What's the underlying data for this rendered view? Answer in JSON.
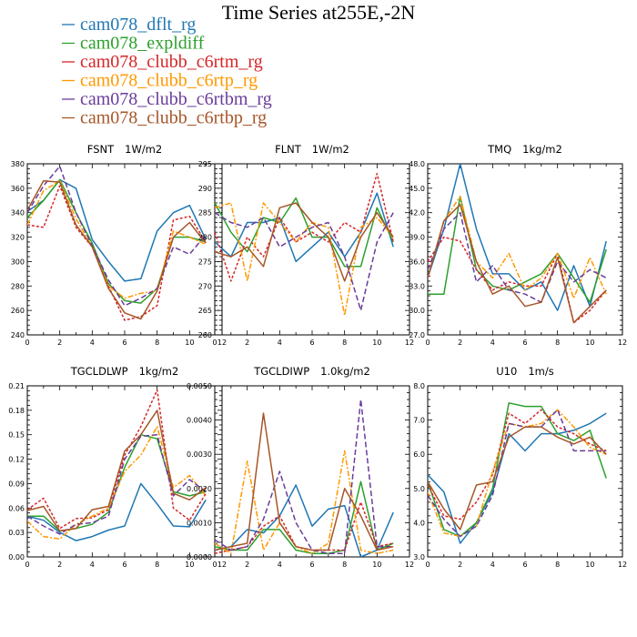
{
  "figure_title": "Time Series at255E,-2N",
  "legend": [
    {
      "name": "cam078_dflt_rg",
      "color": "#1f77b4"
    },
    {
      "name": "cam078_expldiff",
      "color": "#2ca02c"
    },
    {
      "name": "cam078_clubb_c6rtm_rg",
      "color": "#d62728"
    },
    {
      "name": "cam078_clubb_c6rtp_rg",
      "color": "#ff9900"
    },
    {
      "name": "cam078_clubb_c6rtbm_rg",
      "color": "#6a3d9a"
    },
    {
      "name": "cam078_clubb_c6rtbp_rg",
      "color": "#a65628"
    }
  ],
  "chart_data": [
    {
      "type": "line",
      "title": "FSNT",
      "unit": "1W/m2",
      "x": [
        0,
        1,
        2,
        3,
        4,
        5,
        6,
        7,
        8,
        9,
        10,
        11
      ],
      "xlim": [
        0,
        12
      ],
      "xticks": [
        0,
        2,
        4,
        6,
        8,
        10,
        12
      ],
      "ylim": [
        240,
        380
      ],
      "yticks": [
        240,
        260,
        280,
        300,
        320,
        340,
        360,
        380
      ],
      "ytick_labels": [
        "240",
        "260",
        "280",
        "300",
        "320",
        "340",
        "360",
        "380"
      ],
      "series": [
        {
          "name": "cam078_dflt_rg",
          "dash": "solid",
          "values": [
            341,
            350,
            367,
            360,
            318,
            300,
            284,
            286,
            325,
            340,
            346,
            318
          ]
        },
        {
          "name": "cam078_expldiff",
          "dash": "solid",
          "values": [
            336,
            350,
            367,
            340,
            315,
            282,
            268,
            266,
            278,
            320,
            320,
            316
          ]
        },
        {
          "name": "cam078_clubb_c6rtm_rg",
          "dash": "short",
          "values": [
            330,
            328,
            362,
            328,
            312,
            280,
            252,
            255,
            264,
            334,
            337,
            316
          ]
        },
        {
          "name": "cam078_clubb_c6rtp_rg",
          "dash": "dashdot",
          "values": [
            330,
            358,
            366,
            335,
            312,
            280,
            270,
            274,
            276,
            325,
            320,
            314
          ]
        },
        {
          "name": "cam078_clubb_c6rtbm_rg",
          "dash": "long",
          "values": [
            340,
            362,
            378,
            340,
            313,
            285,
            264,
            270,
            278,
            312,
            306,
            322
          ]
        },
        {
          "name": "cam078_clubb_c6rtbp_rg",
          "dash": "solid",
          "values": [
            342,
            366,
            365,
            330,
            312,
            278,
            258,
            253,
            276,
            320,
            332,
            315
          ]
        }
      ]
    },
    {
      "type": "line",
      "title": "FLNT",
      "unit": "1W/m2",
      "x": [
        0,
        1,
        2,
        3,
        4,
        5,
        6,
        7,
        8,
        9,
        10,
        11
      ],
      "xlim": [
        0,
        12
      ],
      "xticks": [
        0,
        2,
        4,
        6,
        8,
        10,
        12
      ],
      "ylim": [
        260,
        295
      ],
      "yticks": [
        260,
        265,
        270,
        275,
        280,
        285,
        290,
        295
      ],
      "ytick_labels": [
        "260",
        "265",
        "270",
        "275",
        "280",
        "285",
        "290",
        "295"
      ],
      "series": [
        {
          "name": "cam078_dflt_rg",
          "dash": "solid",
          "values": [
            279,
            276,
            283,
            283,
            284,
            275,
            278,
            281,
            276,
            281,
            289,
            278
          ]
        },
        {
          "name": "cam078_expldiff",
          "dash": "solid",
          "values": [
            287,
            281,
            277,
            284,
            283,
            288,
            280,
            280,
            274,
            274,
            286,
            279
          ]
        },
        {
          "name": "cam078_clubb_c6rtm_rg",
          "dash": "short",
          "values": [
            281,
            271,
            280,
            276,
            284,
            279,
            281,
            279,
            283,
            281,
            293,
            279
          ]
        },
        {
          "name": "cam078_clubb_c6rtp_rg",
          "dash": "dashdot",
          "values": [
            286,
            287,
            271,
            287,
            283,
            279,
            283,
            282,
            264,
            282,
            284,
            280
          ]
        },
        {
          "name": "cam078_clubb_c6rtbm_rg",
          "dash": "long",
          "values": [
            285,
            283,
            282,
            284,
            278,
            280,
            282,
            283,
            276,
            265,
            279,
            285
          ]
        },
        {
          "name": "cam078_clubb_c6rtbp_rg",
          "dash": "solid",
          "values": [
            277,
            276,
            278,
            274,
            286,
            287,
            283,
            280,
            271,
            280,
            285,
            280
          ]
        }
      ]
    },
    {
      "type": "line",
      "title": "TMQ",
      "unit": "1kg/m2",
      "x": [
        0,
        1,
        2,
        3,
        4,
        5,
        6,
        7,
        8,
        9,
        10,
        11
      ],
      "xlim": [
        0,
        12
      ],
      "xticks": [
        0,
        2,
        4,
        6,
        8,
        10,
        12
      ],
      "ylim": [
        27,
        48
      ],
      "yticks": [
        27,
        30,
        33,
        36,
        39,
        42,
        45,
        48
      ],
      "ytick_labels": [
        "27.0",
        "30.0",
        "33.0",
        "36.0",
        "39.0",
        "42.0",
        "45.0",
        "48.0"
      ],
      "series": [
        {
          "name": "cam078_dflt_rg",
          "dash": "solid",
          "values": [
            34,
            40,
            48,
            40,
            34.5,
            34.5,
            32.5,
            33.5,
            30,
            35.5,
            30.5,
            38.5
          ]
        },
        {
          "name": "cam078_expldiff",
          "dash": "solid",
          "values": [
            32,
            32,
            44,
            35,
            33,
            32.5,
            33.5,
            34.5,
            37,
            34,
            31,
            37.5
          ]
        },
        {
          "name": "cam078_clubb_c6rtm_rg",
          "dash": "short",
          "values": [
            36,
            39,
            38.5,
            35,
            32.5,
            33.5,
            33,
            33,
            37,
            28.5,
            30,
            32.5
          ]
        },
        {
          "name": "cam078_clubb_c6rtp_rg",
          "dash": "dashdot",
          "values": [
            34,
            41,
            44,
            36,
            34,
            37,
            32.5,
            34,
            37,
            31.5,
            36.5,
            32
          ]
        },
        {
          "name": "cam078_clubb_c6rtbm_rg",
          "dash": "long",
          "values": [
            35,
            40,
            42,
            33.5,
            35.5,
            32.5,
            32,
            31,
            36,
            33.5,
            35,
            34
          ]
        },
        {
          "name": "cam078_clubb_c6rtbp_rg",
          "dash": "solid",
          "values": [
            34,
            41,
            43,
            36,
            32,
            33,
            30.5,
            31,
            36.5,
            28.5,
            30.5,
            32.5
          ]
        }
      ]
    },
    {
      "type": "line",
      "title": "TGCLDLWP",
      "unit": "1kg/m2",
      "x": [
        0,
        1,
        2,
        3,
        4,
        5,
        6,
        7,
        8,
        9,
        10,
        11
      ],
      "xlim": [
        0,
        12
      ],
      "xticks": [
        0,
        2,
        4,
        6,
        8,
        10,
        12
      ],
      "ylim": [
        0,
        0.21
      ],
      "yticks": [
        0,
        0.03,
        0.06,
        0.09,
        0.12,
        0.15,
        0.18,
        0.21
      ],
      "ytick_labels": [
        "0.00",
        "0.03",
        "0.06",
        "0.09",
        "0.12",
        "0.15",
        "0.18",
        "0.21"
      ],
      "series": [
        {
          "name": "cam078_dflt_rg",
          "dash": "solid",
          "values": [
            0.05,
            0.045,
            0.03,
            0.02,
            0.025,
            0.033,
            0.038,
            0.09,
            0.065,
            0.038,
            0.037,
            0.07
          ]
        },
        {
          "name": "cam078_expldiff",
          "dash": "solid",
          "values": [
            0.05,
            0.05,
            0.032,
            0.035,
            0.04,
            0.055,
            0.11,
            0.15,
            0.145,
            0.08,
            0.075,
            0.08
          ]
        },
        {
          "name": "cam078_clubb_c6rtm_rg",
          "dash": "short",
          "values": [
            0.058,
            0.072,
            0.035,
            0.047,
            0.048,
            0.058,
            0.125,
            0.16,
            0.205,
            0.06,
            0.045,
            0.078
          ]
        },
        {
          "name": "cam078_clubb_c6rtp_rg",
          "dash": "dashdot",
          "values": [
            0.044,
            0.025,
            0.022,
            0.04,
            0.05,
            0.06,
            0.105,
            0.125,
            0.16,
            0.085,
            0.1,
            0.075
          ]
        },
        {
          "name": "cam078_clubb_c6rtbm_rg",
          "dash": "long",
          "values": [
            0.05,
            0.038,
            0.028,
            0.04,
            0.042,
            0.05,
            0.12,
            0.148,
            0.15,
            0.075,
            0.095,
            0.08
          ]
        },
        {
          "name": "cam078_clubb_c6rtbp_rg",
          "dash": "solid",
          "values": [
            0.057,
            0.062,
            0.032,
            0.035,
            0.058,
            0.062,
            0.13,
            0.15,
            0.18,
            0.078,
            0.07,
            0.085
          ]
        }
      ]
    },
    {
      "type": "line",
      "title": "TGCLDIWP",
      "unit": "1.0kg/m2",
      "x": [
        0,
        1,
        2,
        3,
        4,
        5,
        6,
        7,
        8,
        9,
        10,
        11
      ],
      "xlim": [
        0,
        12
      ],
      "xticks": [
        0,
        2,
        4,
        6,
        8,
        10,
        12
      ],
      "ylim": [
        0,
        0.005
      ],
      "yticks": [
        0,
        0.001,
        0.002,
        0.003,
        0.004,
        0.005
      ],
      "ytick_labels": [
        "0.0000",
        "0.0010",
        "0.0020",
        "0.0030",
        "0.0040",
        "0.0050"
      ],
      "series": [
        {
          "name": "cam078_dflt_rg",
          "dash": "solid",
          "values": [
            0.0002,
            0.0003,
            0.0008,
            0.0007,
            0.0012,
            0.0021,
            0.0009,
            0.0014,
            0.0015,
            0.0,
            0.0002,
            0.0013
          ]
        },
        {
          "name": "cam078_expldiff",
          "dash": "solid",
          "values": [
            0.0003,
            0.0002,
            0.0002,
            0.0008,
            0.0008,
            0.0002,
            0.0001,
            0.0001,
            0.0002,
            0.0022,
            0.0002,
            0.0004
          ]
        },
        {
          "name": "cam078_clubb_c6rtm_rg",
          "dash": "short",
          "values": [
            0.0001,
            0.0002,
            0.0003,
            0.0009,
            0.0012,
            0.0003,
            0.0002,
            0.0002,
            0.0002,
            0.0016,
            0.0003,
            0.0004
          ]
        },
        {
          "name": "cam078_clubb_c6rtp_rg",
          "dash": "dashdot",
          "values": [
            0.0004,
            0.0001,
            0.0028,
            0.0002,
            0.001,
            0.0003,
            0.0001,
            0.0004,
            0.0031,
            0.0002,
            0.0001,
            0.0002
          ]
        },
        {
          "name": "cam078_clubb_c6rtbm_rg",
          "dash": "long",
          "values": [
            0.0005,
            0.0002,
            0.0003,
            0.0011,
            0.0025,
            0.001,
            0.0002,
            0.0001,
            0.0001,
            0.0046,
            0.0003,
            0.0003
          ]
        },
        {
          "name": "cam078_clubb_c6rtbp_rg",
          "dash": "solid",
          "values": [
            0.0002,
            0.0003,
            0.0004,
            0.0042,
            0.001,
            0.0003,
            0.0002,
            0.0002,
            0.002,
            0.0012,
            0.0002,
            0.0003
          ]
        }
      ]
    },
    {
      "type": "line",
      "title": "U10",
      "unit": "1m/s",
      "x": [
        0,
        1,
        2,
        3,
        4,
        5,
        6,
        7,
        8,
        9,
        10,
        11
      ],
      "xlim": [
        0,
        12
      ],
      "xticks": [
        0,
        2,
        4,
        6,
        8,
        10,
        12
      ],
      "ylim": [
        3,
        8
      ],
      "yticks": [
        3,
        4,
        5,
        6,
        7,
        8
      ],
      "ytick_labels": [
        "3.0",
        "4.0",
        "5.0",
        "6.0",
        "7.0",
        "8.0"
      ],
      "series": [
        {
          "name": "cam078_dflt_rg",
          "dash": "solid",
          "values": [
            5.4,
            4.9,
            3.4,
            4.0,
            4.9,
            6.6,
            6.1,
            6.6,
            6.6,
            6.7,
            6.9,
            7.2
          ]
        },
        {
          "name": "cam078_expldiff",
          "dash": "solid",
          "values": [
            5.2,
            3.8,
            3.6,
            4.0,
            5.0,
            7.5,
            7.4,
            7.4,
            6.6,
            6.4,
            6.7,
            5.3
          ]
        },
        {
          "name": "cam078_clubb_c6rtm_rg",
          "dash": "short",
          "values": [
            5.1,
            4.2,
            4.1,
            4.6,
            5.4,
            7.2,
            6.9,
            7.3,
            6.8,
            6.6,
            6.3,
            6.1
          ]
        },
        {
          "name": "cam078_clubb_c6rtp_rg",
          "dash": "dashdot",
          "values": [
            4.9,
            3.7,
            3.6,
            3.9,
            5.5,
            6.9,
            6.8,
            6.9,
            7.3,
            6.8,
            6.2,
            6.0
          ]
        },
        {
          "name": "cam078_clubb_c6rtbm_rg",
          "dash": "long",
          "values": [
            4.8,
            4.1,
            3.6,
            3.9,
            4.8,
            6.9,
            6.8,
            6.8,
            7.3,
            6.1,
            6.1,
            6.1
          ]
        },
        {
          "name": "cam078_clubb_c6rtbp_rg",
          "dash": "solid",
          "values": [
            5.2,
            4.4,
            3.8,
            5.1,
            5.2,
            6.5,
            6.8,
            6.8,
            6.5,
            6.3,
            6.5,
            6.0
          ]
        }
      ]
    }
  ]
}
